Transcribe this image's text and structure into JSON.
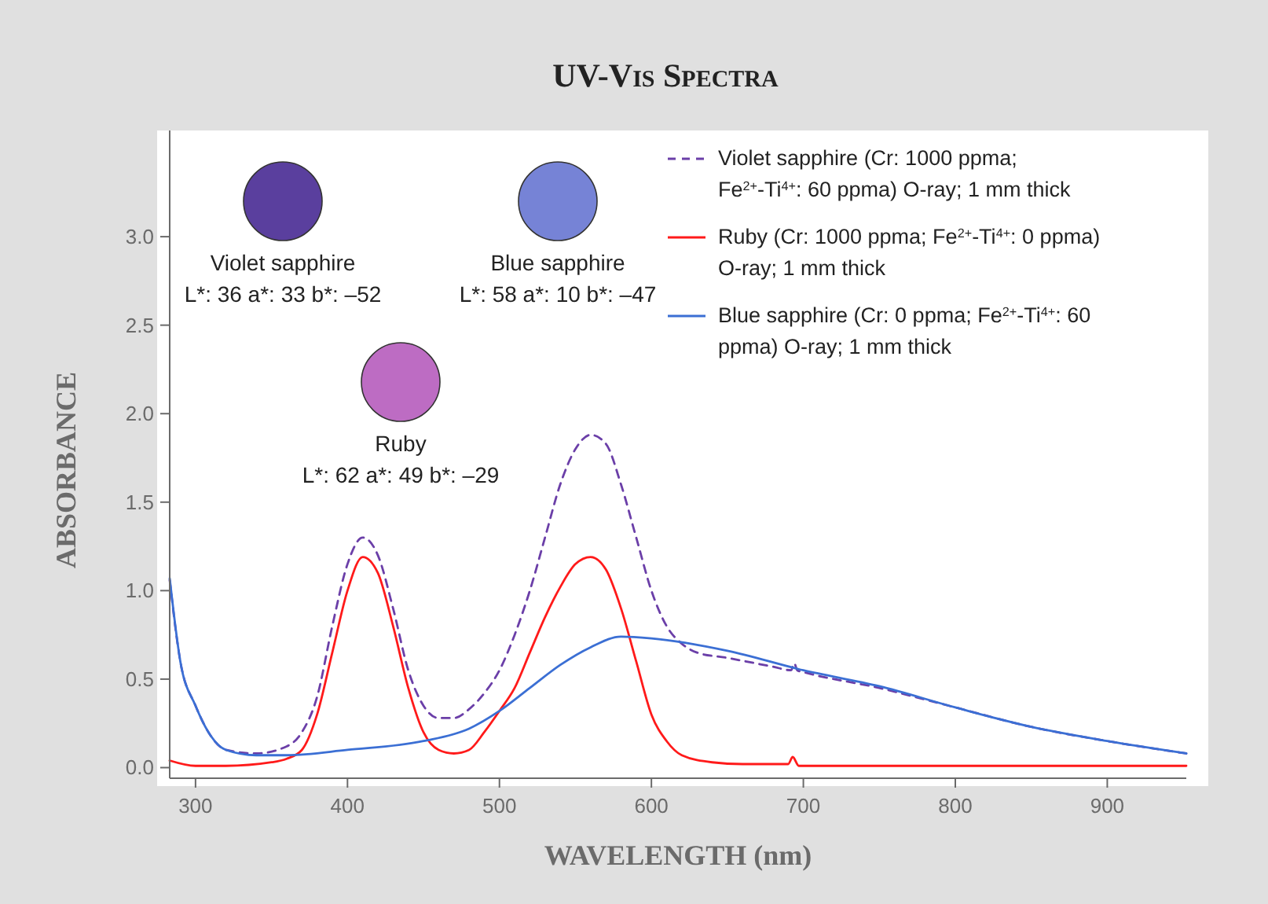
{
  "chart_data": {
    "type": "line",
    "title": "UV-Vis Spectra",
    "xlabel": "WAVELENGTH (nm)",
    "ylabel": "ABSORBANCE",
    "xlim": [
      283,
      952
    ],
    "ylim": [
      -0.06,
      3.6
    ],
    "xticks": [
      300,
      400,
      500,
      600,
      700,
      800,
      900
    ],
    "yticks": [
      {
        "value": 0,
        "label": "0.0"
      },
      {
        "value": 0.5,
        "label": "0.5"
      },
      {
        "value": 1,
        "label": "1.0"
      },
      {
        "value": 1.5,
        "label": "1.5"
      },
      {
        "value": 2,
        "label": "2.0"
      },
      {
        "value": 2.5,
        "label": "2.5"
      },
      {
        "value": 3,
        "label": "3.0"
      }
    ],
    "grid": false,
    "legend": "top right",
    "marker": "none",
    "annotations": [
      "Violet sapphire",
      "L*: 36 a*: 33 b*: –52",
      "Blue sapphire",
      "L*: 58 a*: 10 b*: –47",
      "Ruby",
      "L*: 62 a*: 49 b*: –29"
    ],
    "series": [
      {
        "name": "Violet sapphire (Cr: 1000 ppma; Fe$^{2+}$-Ti$^{4+}$: 60 ppma) O-ray; 1 mm thick",
        "color": "#6b3fa8",
        "line_style": "dashed",
        "x": [
          283,
          290,
          300,
          310,
          320,
          340,
          360,
          370,
          380,
          390,
          400,
          410,
          420,
          430,
          440,
          450,
          460,
          470,
          480,
          490,
          500,
          510,
          520,
          530,
          540,
          550,
          560,
          570,
          580,
          590,
          600,
          610,
          620,
          630,
          650,
          680,
          692,
          694,
          696,
          700,
          750,
          800,
          850,
          900,
          952
        ],
        "values": [
          1.06,
          0.6,
          0.35,
          0.18,
          0.1,
          0.08,
          0.12,
          0.2,
          0.4,
          0.8,
          1.15,
          1.3,
          1.2,
          0.9,
          0.55,
          0.35,
          0.28,
          0.28,
          0.33,
          0.42,
          0.55,
          0.75,
          1.0,
          1.3,
          1.6,
          1.8,
          1.88,
          1.83,
          1.6,
          1.3,
          1.0,
          0.8,
          0.7,
          0.65,
          0.62,
          0.57,
          0.55,
          0.59,
          0.55,
          0.54,
          0.45,
          0.34,
          0.23,
          0.15,
          0.08
        ]
      },
      {
        "name": "Ruby (Cr: 1000 ppma; Fe$^{2+}$-Ti$^{4+}$: 0 ppma) O-ray; 1 mm thick",
        "color": "#ff1a1a",
        "line_style": "solid",
        "x": [
          283,
          300,
          320,
          350,
          360,
          370,
          380,
          390,
          400,
          410,
          420,
          430,
          440,
          450,
          460,
          470,
          480,
          490,
          500,
          510,
          520,
          530,
          540,
          550,
          560,
          570,
          580,
          590,
          600,
          610,
          620,
          640,
          660,
          690,
          693,
          697,
          750,
          850,
          952
        ],
        "values": [
          0.04,
          0.01,
          0.01,
          0.03,
          0.05,
          0.1,
          0.3,
          0.65,
          1.0,
          1.19,
          1.1,
          0.8,
          0.45,
          0.2,
          0.1,
          0.08,
          0.1,
          0.2,
          0.32,
          0.45,
          0.65,
          0.85,
          1.02,
          1.15,
          1.19,
          1.12,
          0.9,
          0.6,
          0.3,
          0.15,
          0.07,
          0.03,
          0.02,
          0.02,
          0.06,
          0.01,
          0.01,
          0.01,
          0.01
        ]
      },
      {
        "name": "Blue sapphire (Cr: 0 ppma; Fe$^{2+}$-Ti$^{4+}$: 60 ppma) O-ray; 1 mm thick",
        "color": "#3b6fd4",
        "line_style": "solid",
        "x": [
          283,
          290,
          300,
          310,
          320,
          340,
          360,
          400,
          450,
          480,
          500,
          520,
          540,
          560,
          580,
          600,
          650,
          700,
          750,
          800,
          850,
          900,
          952
        ],
        "values": [
          1.07,
          0.6,
          0.35,
          0.18,
          0.1,
          0.07,
          0.07,
          0.1,
          0.15,
          0.22,
          0.32,
          0.45,
          0.58,
          0.68,
          0.74,
          0.73,
          0.66,
          0.55,
          0.46,
          0.34,
          0.23,
          0.15,
          0.08
        ]
      }
    ]
  }
}
